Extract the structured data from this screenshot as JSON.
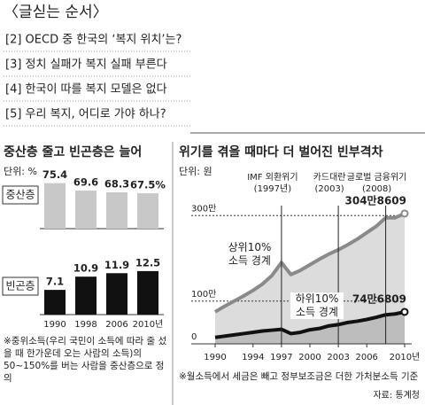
{
  "header": {
    "title": "〈글싣는 순서〉",
    "items": [
      "[2] OECD 중 한국의 ‘복지 위치’는?",
      "[3] 정치 실패가 복지 실패 부른다",
      "[4] 한국이 따를 복지 모델은 없다",
      "[5] 우리 복지, 어디로 가야 하나?"
    ]
  },
  "chart_data": [
    {
      "type": "bar",
      "title": "중산층 줄고 빈곤층은 늘어",
      "unit": "단위: %",
      "categories": [
        "1990",
        "1998",
        "2006",
        "2010년"
      ],
      "series": [
        {
          "name": "중산층",
          "color": "#c8c8c8",
          "values": [
            75.4,
            69.6,
            68.3,
            67.5
          ],
          "value_labels": [
            "75.4",
            "69.6",
            "68.3",
            "67.5%"
          ],
          "ylim": [
            40,
            80
          ]
        },
        {
          "name": "빈곤층",
          "color": "#111111",
          "values": [
            7.1,
            10.9,
            11.9,
            12.5
          ],
          "ylim": [
            0,
            14
          ]
        }
      ],
      "note": "※중위소득(우리 국민이 소득에 따라 줄 섰을 때 한가운데 오는 사람의 소득)의 50~150%를 버는 사람을 중산층으로 정의"
    },
    {
      "type": "line",
      "title": "위기를 겪을 때마다 더 벌어진 빈부격차",
      "unit": "단위: 원",
      "x": [
        1990,
        1991,
        1992,
        1993,
        1994,
        1995,
        1996,
        1997,
        1998,
        1999,
        2000,
        2001,
        2002,
        2003,
        2004,
        2005,
        2006,
        2007,
        2008,
        2009,
        2010
      ],
      "xlim": [
        1990,
        2010
      ],
      "xticks": [
        1990,
        1994,
        1997,
        2000,
        2003,
        2006,
        {
          "value": 2010,
          "label": "2010년"
        }
      ],
      "ylim": [
        0,
        3400000
      ],
      "yticks": [
        0,
        {
          "value": 1000000,
          "label": "100만"
        },
        {
          "value": 3000000,
          "label": "300만"
        }
      ],
      "grid": true,
      "series": [
        {
          "name": "상위10% 소득 경계",
          "color": "#8a8a8a",
          "area_color": "#dcdcdc",
          "values": [
            750000,
            880000,
            1000000,
            1120000,
            1250000,
            1400000,
            1600000,
            1900000,
            1620000,
            1720000,
            1850000,
            1980000,
            2100000,
            2200000,
            2320000,
            2450000,
            2600000,
            2750000,
            2950000,
            2950000,
            3048609
          ],
          "end_label": "304만8609"
        },
        {
          "name": "하위10% 소득 경계",
          "color": "#111111",
          "area_color": "#bdbdbd",
          "values": [
            150000,
            180000,
            210000,
            240000,
            270000,
            300000,
            320000,
            340000,
            240000,
            270000,
            330000,
            360000,
            420000,
            450000,
            500000,
            530000,
            570000,
            620000,
            680000,
            700000,
            746809
          ],
          "end_label": "74만6809"
        }
      ],
      "annotations": [
        {
          "x": 1997,
          "text": [
            "IMF 외환위기",
            "(1997년)"
          ]
        },
        {
          "x": 2003,
          "text": [
            "카드대란",
            "(2003)"
          ]
        },
        {
          "x": 2008,
          "text": [
            "글로벌 금융위기",
            "(2008)"
          ]
        }
      ],
      "note": "※월소득에서 세금은 빼고 정부보조금은 더한 가처분소득 기준",
      "source": "자료: 통계청"
    }
  ]
}
